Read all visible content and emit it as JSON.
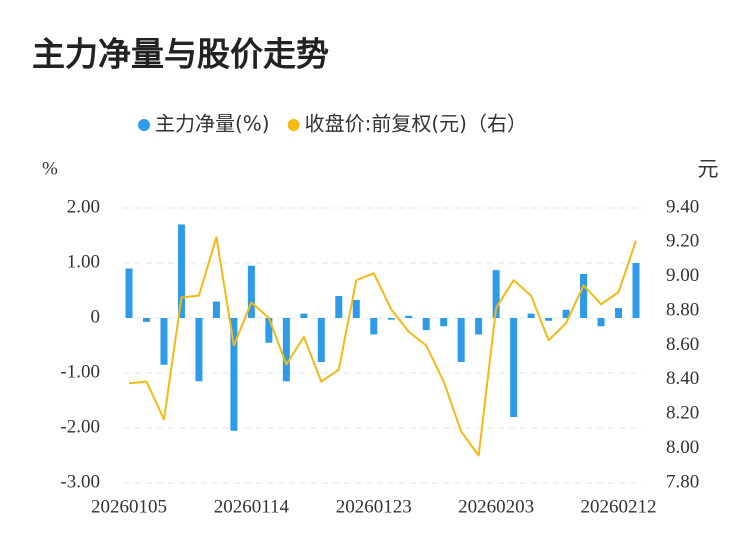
{
  "chart_data": {
    "type": "bar_line",
    "title": "主力净量与股价走势",
    "y_label": "%",
    "y2_label": "元",
    "categories": [
      "20260105",
      null,
      null,
      null,
      null,
      null,
      null,
      "20260114",
      null,
      null,
      null,
      null,
      null,
      null,
      "20260123",
      null,
      null,
      null,
      null,
      null,
      null,
      "20260203",
      null,
      null,
      null,
      null,
      null,
      null,
      "20260212",
      null
    ],
    "series": [
      {
        "name": "主力净量(%)",
        "color": "#2e9be8",
        "type": "bar",
        "values": [
          0.9,
          -0.07,
          -0.85,
          1.7,
          -1.15,
          0.3,
          -2.05,
          0.95,
          -0.45,
          -1.15,
          0.08,
          -0.8,
          0.4,
          0.33,
          -0.3,
          -0.03,
          0.04,
          -0.22,
          -0.15,
          -0.8,
          -0.3,
          0.87,
          -1.8,
          0.08,
          -0.05,
          0.15,
          0.8,
          -0.15,
          0.18,
          1.0
        ]
      },
      {
        "name": "收盘价:前复权(元)（右）",
        "color": "#f5b914",
        "type": "line",
        "axis": "y2",
        "values": [
          8.38,
          8.39,
          8.17,
          8.88,
          8.89,
          9.23,
          8.6,
          8.85,
          8.76,
          8.49,
          8.65,
          8.39,
          8.46,
          8.98,
          9.02,
          8.81,
          8.68,
          8.6,
          8.39,
          8.1,
          7.96,
          8.82,
          8.98,
          8.89,
          8.63,
          8.73,
          8.95,
          8.84,
          8.91,
          9.21
        ]
      }
    ],
    "ylim": [
      -3,
      2
    ],
    "yticks": [
      {
        "value": -3,
        "label": "-3.00"
      },
      {
        "value": -2,
        "label": "-2.00"
      },
      {
        "value": -1,
        "label": "-1.00"
      },
      0,
      {
        "value": 1,
        "label": "1.00"
      },
      {
        "value": 2,
        "label": "2.00"
      }
    ],
    "y2lim": [
      7.8,
      9.4
    ],
    "y2ticks": [
      {
        "value": 7.8,
        "label": "7.80"
      },
      {
        "value": 8.0,
        "label": "8.00"
      },
      {
        "value": 8.2,
        "label": "8.20"
      },
      {
        "value": 8.4,
        "label": "8.40"
      },
      {
        "value": 8.6,
        "label": "8.60"
      },
      {
        "value": 8.8,
        "label": "8.80"
      },
      {
        "value": 9.0,
        "label": "9.00"
      },
      {
        "value": 9.2,
        "label": "9.20"
      },
      {
        "value": 9.4,
        "label": "9.40"
      }
    ],
    "grid": true,
    "legend": "top"
  }
}
